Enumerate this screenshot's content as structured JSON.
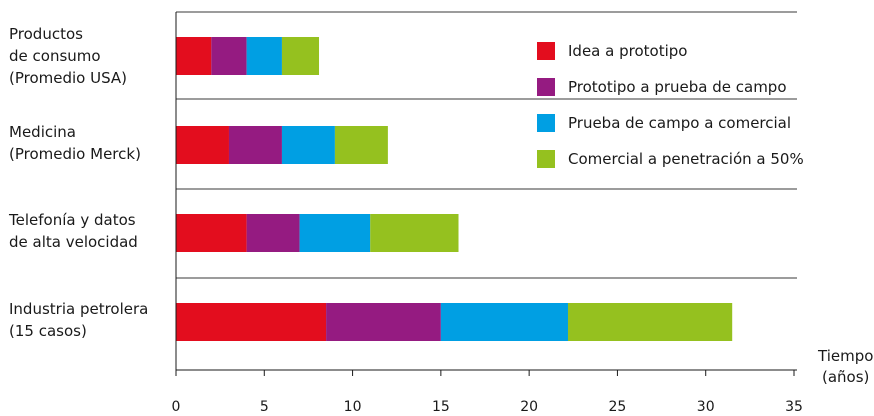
{
  "chart_data": {
    "type": "bar",
    "orientation": "horizontal",
    "stacked": true,
    "categories": [
      "Productos\nde consumo\n(Promedio USA)",
      "Medicina\n(Promedio Merck)",
      "Telefonía y datos\nde alta velocidad",
      "Industria petrolera\n(15 casos)"
    ],
    "series": [
      {
        "name": "Idea a prototipo",
        "color": "#e30d1e",
        "values": [
          2,
          3,
          4,
          8.5
        ]
      },
      {
        "name": "Prototipo a prueba de campo",
        "color": "#951b81",
        "values": [
          2,
          3,
          3,
          6.5
        ]
      },
      {
        "name": "Prueba de campo a comercial",
        "color": "#009fe3",
        "values": [
          2,
          3,
          4,
          7.2
        ]
      },
      {
        "name": "Comercial a penetración a 50%",
        "color": "#95c11f",
        "values": [
          2.1,
          3,
          5,
          9.3
        ]
      }
    ],
    "xlabel": "Tiempo\n(años)",
    "xlim": [
      0,
      35
    ],
    "xticks": [
      0,
      5,
      10,
      15,
      20,
      25,
      30,
      35
    ],
    "legend_position": "top-right",
    "grid": "horizontal separators between categories"
  }
}
